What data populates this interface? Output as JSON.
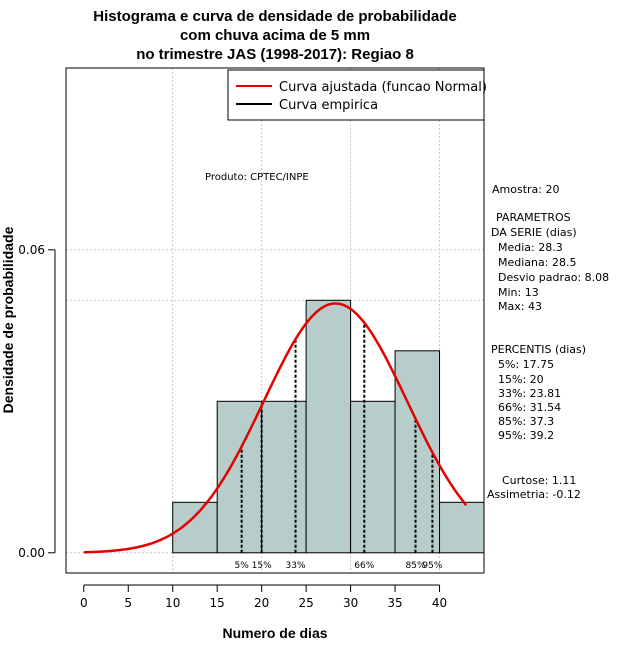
{
  "chart_data": {
    "type": "bar",
    "title_lines": [
      "Histograma e curva de densidade de probabilidade",
      "com chuva acima de 5 mm",
      "no trimestre JAS (1998-2017): Regiao 8"
    ],
    "xlabel": "Numero de dias",
    "ylabel": "Densidade de probabilidade",
    "xlim": [
      -2,
      45
    ],
    "ylim": [
      -0.004,
      0.096
    ],
    "x_ticks": [
      0,
      5,
      10,
      15,
      20,
      25,
      30,
      35,
      40
    ],
    "y_ticks": [
      0.0,
      0.06
    ],
    "y_tick_labels": [
      "0.00",
      "0.06"
    ],
    "grid": true,
    "bars": [
      {
        "x0": 10,
        "x1": 15,
        "density": 0.01
      },
      {
        "x0": 15,
        "x1": 20,
        "density": 0.03
      },
      {
        "x0": 20,
        "x1": 25,
        "density": 0.03
      },
      {
        "x0": 25,
        "x1": 30,
        "density": 0.05
      },
      {
        "x0": 30,
        "x1": 35,
        "density": 0.03
      },
      {
        "x0": 35,
        "x1": 40,
        "density": 0.04
      },
      {
        "x0": 40,
        "x1": 45,
        "density": 0.01
      }
    ],
    "bar_color": "#b6cdcc",
    "horizontal_reference": 0.05,
    "fitted_curve": {
      "label": "Curva ajustada (funcao Normal)",
      "mean": 28.3,
      "sd": 8.08,
      "x_from": 0,
      "x_to": 43,
      "color": "#e60000"
    },
    "empirical_curve": {
      "label": "Curva empirica",
      "color": "#000000"
    },
    "legend_position": "top-right",
    "percentile_markers": [
      {
        "label": "5%",
        "x": 17.75
      },
      {
        "label": "15%",
        "x": 20
      },
      {
        "label": "33%",
        "x": 23.81
      },
      {
        "label": "66%",
        "x": 31.54
      },
      {
        "label": "85%",
        "x": 37.3
      },
      {
        "label": "95%",
        "x": 39.2
      }
    ]
  },
  "annotations": {
    "product": "Produto: CPTEC/INPE",
    "sample": "Amostra: 20",
    "params_title_1": "PARAMETROS",
    "params_title_2": "DA SERIE (dias)",
    "media": "Media: 28.3",
    "mediana": "Mediana: 28.5",
    "desvio": "Desvio padrao: 8.08",
    "min": "Min: 13",
    "max": "Max: 43",
    "percentis_title": "PERCENTIS (dias)",
    "p5": "5%: 17.75",
    "p15": "15%: 20",
    "p33": "33%: 23.81",
    "p66": "66%: 31.54",
    "p85": "85%: 37.3",
    "p95": "95%: 39.2",
    "curtose": "Curtose: 1.11",
    "assimetria": "Assimetria: -0.12"
  }
}
